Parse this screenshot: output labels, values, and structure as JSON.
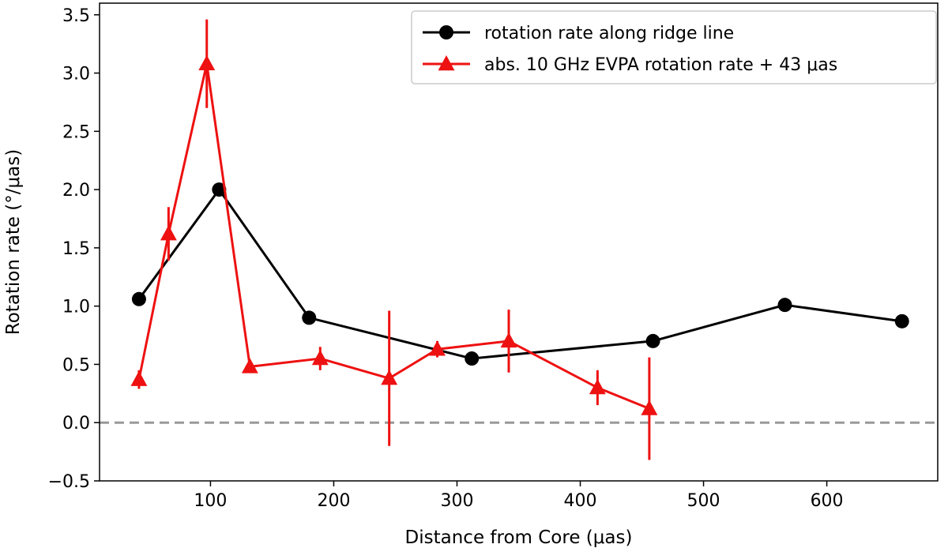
{
  "chart_data": {
    "type": "line",
    "xlabel": "Distance from Core (μas)",
    "ylabel": "Rotation rate (°/μas)",
    "xlim": [
      10,
      690
    ],
    "ylim": [
      -0.5,
      3.6
    ],
    "xticks": [
      100,
      200,
      300,
      400,
      500,
      600
    ],
    "yticks": [
      -0.5,
      0.0,
      0.5,
      1.0,
      1.5,
      2.0,
      2.5,
      3.0,
      3.5
    ],
    "xtick_labels": [
      "100",
      "200",
      "300",
      "400",
      "500",
      "600"
    ],
    "ytick_labels": [
      "−0.5",
      "0.0",
      "0.5",
      "1.0",
      "1.5",
      "2.0",
      "2.5",
      "3.0",
      "3.5"
    ],
    "reference_line": {
      "y": 0.0,
      "style": "dashed",
      "color": "#999999"
    },
    "grid": false,
    "legend_position": "top-right",
    "series": [
      {
        "name": "rotation rate along ridge line",
        "color": "#000000",
        "marker": "circle",
        "x": [
          42,
          107,
          180,
          312,
          459,
          566,
          661
        ],
        "y": [
          1.06,
          2.0,
          0.9,
          0.55,
          0.7,
          1.01,
          0.87
        ]
      },
      {
        "name": "abs. 10 GHz EVPA rotation rate + 43 μas",
        "color": "#ee1111",
        "marker": "triangle",
        "x": [
          42,
          66,
          97,
          132,
          189,
          245,
          284,
          342,
          414,
          456
        ],
        "y": [
          0.37,
          1.62,
          3.08,
          0.48,
          0.55,
          0.38,
          0.63,
          0.7,
          0.3,
          0.12
        ],
        "yerr": [
          0.08,
          0.23,
          0.38,
          0.05,
          0.1,
          0.58,
          0.07,
          0.27,
          0.15,
          0.44
        ]
      }
    ]
  }
}
